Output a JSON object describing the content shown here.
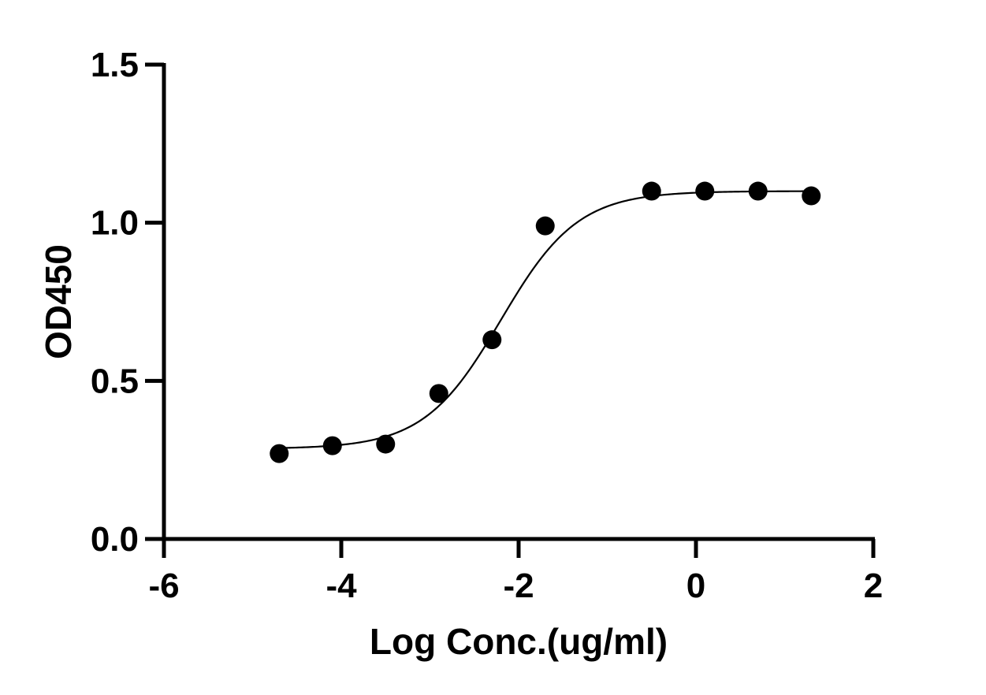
{
  "chart_data": {
    "type": "scatter",
    "xlabel": "Log Conc.(ug/ml)",
    "ylabel": "OD450",
    "xlim": [
      -6,
      2
    ],
    "ylim": [
      0,
      1.5
    ],
    "xticks": [
      -6,
      -4,
      -2,
      0,
      2
    ],
    "xtick_labels": [
      "-6",
      "-4",
      "-2",
      "0",
      "2"
    ],
    "yticks": [
      0,
      0.5,
      1.0,
      1.5
    ],
    "ytick_labels": [
      "0.0",
      "0.5",
      "1.0",
      "1.5"
    ],
    "grid": false,
    "series": [
      {
        "x": [
          -4.7,
          -4.1,
          -3.5,
          -2.9,
          -2.3,
          -1.7,
          -0.5,
          0.1,
          0.7,
          1.3
        ],
        "y": [
          0.27,
          0.295,
          0.3,
          0.46,
          0.63,
          0.99,
          1.1,
          1.1,
          1.1,
          1.085
        ]
      }
    ],
    "fit_curve": {
      "model": "4PL",
      "bottom": 0.285,
      "top": 1.1,
      "log_ec50": -2.2,
      "hill_slope": 1.0,
      "x_range": [
        -4.7,
        1.3
      ]
    },
    "marker_color": "#000000",
    "line_color": "#000000"
  }
}
